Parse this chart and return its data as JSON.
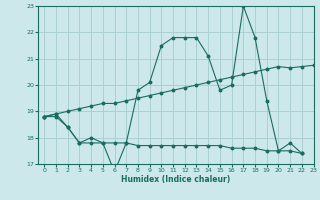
{
  "xlabel": "Humidex (Indice chaleur)",
  "ylabel": "",
  "bg_color": "#cce8ea",
  "grid_color": "#aacfd2",
  "line_color": "#1a6b60",
  "xlim": [
    -0.5,
    23
  ],
  "ylim": [
    17,
    23
  ],
  "xticks": [
    0,
    1,
    2,
    3,
    4,
    5,
    6,
    7,
    8,
    9,
    10,
    11,
    12,
    13,
    14,
    15,
    16,
    17,
    18,
    19,
    20,
    21,
    22,
    23
  ],
  "yticks": [
    17,
    18,
    19,
    20,
    21,
    22,
    23
  ],
  "line1_x": [
    0,
    1,
    2,
    3,
    4,
    5,
    6,
    7,
    8,
    9,
    10,
    11,
    12,
    13,
    14,
    15,
    16,
    17,
    18,
    19,
    20,
    21,
    22
  ],
  "line1_y": [
    18.8,
    18.9,
    18.4,
    17.8,
    18.0,
    17.8,
    16.7,
    17.8,
    19.8,
    20.1,
    21.5,
    21.8,
    21.8,
    21.8,
    21.1,
    19.8,
    20.0,
    23.0,
    21.8,
    19.4,
    17.5,
    17.8,
    17.4
  ],
  "line2_x": [
    0,
    1,
    2,
    3,
    4,
    5,
    6,
    7,
    8,
    9,
    10,
    11,
    12,
    13,
    14,
    15,
    16,
    17,
    18,
    19,
    20,
    21,
    22,
    23
  ],
  "line2_y": [
    18.8,
    18.9,
    19.0,
    19.1,
    19.2,
    19.3,
    19.3,
    19.4,
    19.5,
    19.6,
    19.7,
    19.8,
    19.9,
    20.0,
    20.1,
    20.2,
    20.3,
    20.4,
    20.5,
    20.6,
    20.7,
    20.65,
    20.7,
    20.75
  ],
  "line3_x": [
    0,
    1,
    2,
    3,
    4,
    5,
    6,
    7,
    8,
    9,
    10,
    11,
    12,
    13,
    14,
    15,
    16,
    17,
    18,
    19,
    20,
    21,
    22
  ],
  "line3_y": [
    18.8,
    18.8,
    18.4,
    17.8,
    17.8,
    17.8,
    17.8,
    17.8,
    17.7,
    17.7,
    17.7,
    17.7,
    17.7,
    17.7,
    17.7,
    17.7,
    17.6,
    17.6,
    17.6,
    17.5,
    17.5,
    17.5,
    17.4
  ]
}
